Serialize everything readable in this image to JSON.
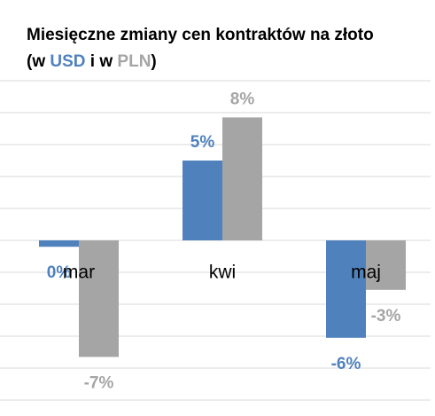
{
  "chart_data": {
    "type": "bar",
    "title": "Miesięczne zmiany cen kontraktów na złoto",
    "legend_text": [
      "(w ",
      " i w ",
      ")"
    ],
    "categories": [
      "mar",
      "kwi",
      "maj"
    ],
    "series": [
      {
        "name": "USD",
        "color": "#4f81bd",
        "values": [
          -0.4,
          5,
          -6.1
        ],
        "value_labels": [
          "0%",
          "5%",
          "-6%"
        ]
      },
      {
        "name": "PLN",
        "color": "#a5a5a5",
        "values": [
          -7.3,
          7.7,
          -3.1
        ],
        "value_labels": [
          "-7%",
          "8%",
          "-3%"
        ]
      }
    ],
    "ylim": [
      -10,
      10
    ],
    "yticks": [
      -10,
      -8,
      -6,
      -4,
      -2,
      0,
      2,
      4,
      6,
      8,
      10
    ],
    "grid": true
  }
}
